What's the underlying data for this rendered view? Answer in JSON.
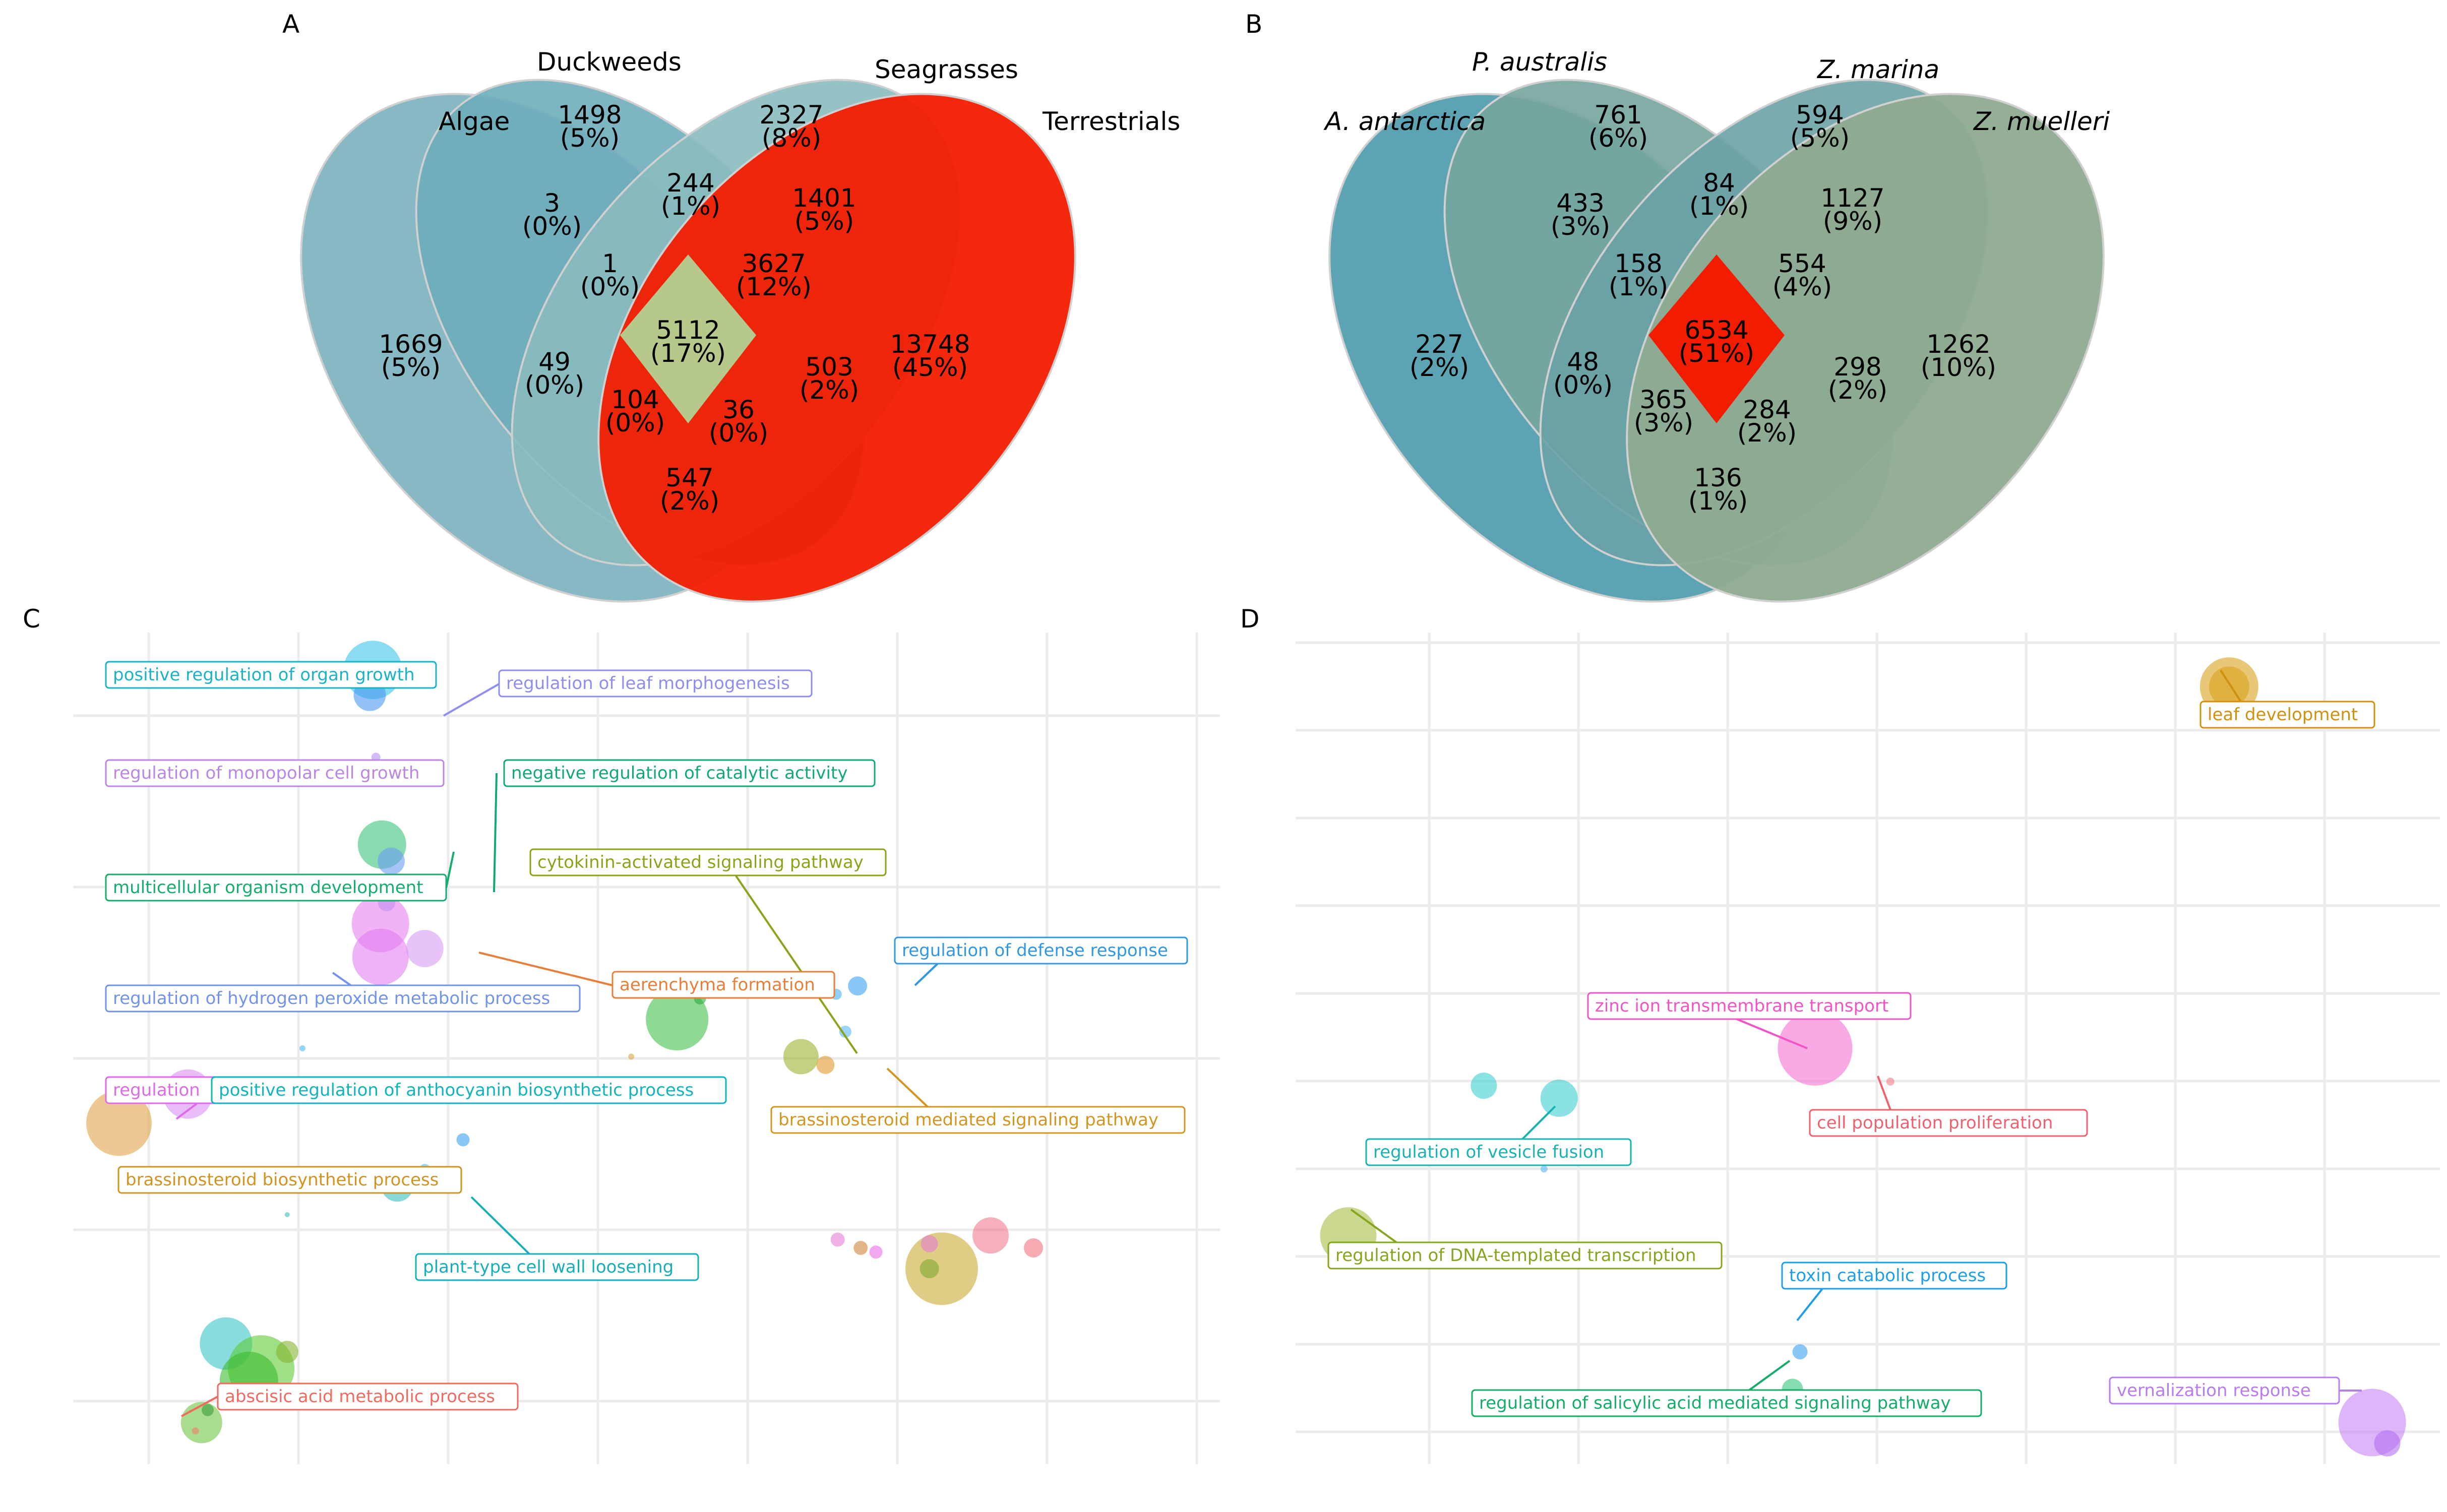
{
  "panels": {
    "a": "A",
    "b": "B",
    "c": "C",
    "d": "D"
  },
  "venn_a": {
    "sets": [
      {
        "label": "Algae",
        "italic": false,
        "color": "#79b1bd"
      },
      {
        "label": "Duckweeds",
        "italic": false,
        "color": "#6fadbb"
      },
      {
        "label": "Seagrasses",
        "italic": false,
        "color": "#8abbbe"
      },
      {
        "label": "Terrestrials",
        "italic": false,
        "color": "#f21c00"
      }
    ],
    "regions": [
      {
        "id": "a_only",
        "count": "1669",
        "pct": "(5%)",
        "color": "#79b1bd"
      },
      {
        "id": "d_only",
        "count": "1498",
        "pct": "(5%)",
        "color": "#6fadbb"
      },
      {
        "id": "s_only",
        "count": "2327",
        "pct": "(8%)",
        "color": "#8abbbe"
      },
      {
        "id": "t_only",
        "count": "13748",
        "pct": "(45%)",
        "color": "#f21c00"
      },
      {
        "id": "ad",
        "count": "3",
        "pct": "(0%)",
        "color": "#4a9cb0"
      },
      {
        "id": "ds",
        "count": "244",
        "pct": "(1%)",
        "color": "#4a9cb0"
      },
      {
        "id": "st",
        "count": "1401",
        "pct": "(5%)",
        "color": "#6aaebb"
      },
      {
        "id": "ads",
        "count": "1",
        "pct": "(0%)",
        "color": "#3f97ad"
      },
      {
        "id": "dst",
        "count": "3627",
        "pct": "(12%)",
        "color": "#9fc3a2"
      },
      {
        "id": "adst",
        "count": "5112",
        "pct": "(17%)",
        "color": "#b6c98b"
      },
      {
        "id": "as",
        "count": "49",
        "pct": "(0%)",
        "color": "#3f97ad"
      },
      {
        "id": "dt",
        "count": "503",
        "pct": "(2%)",
        "color": "#4e9fb2"
      },
      {
        "id": "ast",
        "count": "104",
        "pct": "(0%)",
        "color": "#3f97ad"
      },
      {
        "id": "adt",
        "count": "36",
        "pct": "(0%)",
        "color": "#3f97ad"
      },
      {
        "id": "at",
        "count": "547",
        "pct": "(2%)",
        "color": "#4fa3b8"
      }
    ]
  },
  "venn_b": {
    "sets": [
      {
        "label": "A. antarctica",
        "italic": true,
        "color": "#4a9aab"
      },
      {
        "label": "P. australis",
        "italic": true,
        "color": "#75a59e"
      },
      {
        "label": "Z. marina",
        "italic": true,
        "color": "#6aa2a6"
      },
      {
        "label": "Z. muelleri",
        "italic": true,
        "color": "#8fab90"
      }
    ],
    "regions": [
      {
        "id": "a_only",
        "count": "227",
        "pct": "(2%)",
        "color": "#4a9aab"
      },
      {
        "id": "p_only",
        "count": "761",
        "pct": "(6%)",
        "color": "#75a59e"
      },
      {
        "id": "m_only",
        "count": "594",
        "pct": "(5%)",
        "color": "#6aa2a6"
      },
      {
        "id": "u_only",
        "count": "1262",
        "pct": "(10%)",
        "color": "#8fab90"
      },
      {
        "id": "ap",
        "count": "433",
        "pct": "(3%)",
        "color": "#5b9ea6"
      },
      {
        "id": "pm",
        "count": "84",
        "pct": "(1%)",
        "color": "#3a96ad"
      },
      {
        "id": "mu",
        "count": "1127",
        "pct": "(9%)",
        "color": "#86ac94"
      },
      {
        "id": "apm",
        "count": "158",
        "pct": "(1%)",
        "color": "#3a94aa"
      },
      {
        "id": "pmu",
        "count": "554",
        "pct": "(4%)",
        "color": "#5e9fa4"
      },
      {
        "id": "all",
        "count": "6534",
        "pct": "(51%)",
        "color": "#f21c00"
      },
      {
        "id": "am",
        "count": "48",
        "pct": "(0%)",
        "color": "#3a94aa"
      },
      {
        "id": "pu",
        "count": "298",
        "pct": "(2%)",
        "color": "#4c9aa8"
      },
      {
        "id": "amu",
        "count": "365",
        "pct": "(3%)",
        "color": "#3a94aa"
      },
      {
        "id": "apu",
        "count": "284",
        "pct": "(2%)",
        "color": "#3a94aa"
      },
      {
        "id": "au",
        "count": "136",
        "pct": "(1%)",
        "color": "#3a97b0"
      }
    ]
  },
  "chart_data": [
    {
      "type": "scatter",
      "panel": "C",
      "xlim": [
        0,
        75
      ],
      "ylim": [
        0,
        100
      ],
      "grid": true,
      "points": [
        {
          "x": 19.6,
          "y": 95.5,
          "r": 58,
          "color": "#3ec3ea"
        },
        {
          "x": 19.4,
          "y": 92.5,
          "r": 32,
          "color": "#4a98f0"
        },
        {
          "x": 19.8,
          "y": 85.0,
          "r": 9,
          "color": "#b78cf2"
        },
        {
          "x": 20.2,
          "y": 74.5,
          "r": 48,
          "color": "#3ac47a"
        },
        {
          "x": 20.8,
          "y": 72.5,
          "r": 27,
          "color": "#6a9cf2"
        },
        {
          "x": 22.4,
          "y": 69.0,
          "r": 20,
          "color": "#2fb57d"
        },
        {
          "x": 20.5,
          "y": 67.5,
          "r": 17,
          "color": "#8aa7ee"
        },
        {
          "x": 20.1,
          "y": 65.0,
          "r": 57,
          "color": "#e77ef0"
        },
        {
          "x": 20.1,
          "y": 61.0,
          "r": 56,
          "color": "#e37ef2"
        },
        {
          "x": 23.0,
          "y": 62.0,
          "r": 37,
          "color": "#d69cf2"
        },
        {
          "x": 39.5,
          "y": 53.5,
          "r": 62,
          "color": "#45c24a"
        },
        {
          "x": 41.0,
          "y": 56.0,
          "r": 12,
          "color": "#2fae3e"
        },
        {
          "x": 47.6,
          "y": 49.0,
          "r": 35,
          "color": "#9ab22e"
        },
        {
          "x": 49.2,
          "y": 48.0,
          "r": 18,
          "color": "#e29a2e"
        },
        {
          "x": 51.3,
          "y": 57.5,
          "r": 19,
          "color": "#3aa1f0"
        },
        {
          "x": 50.5,
          "y": 52.0,
          "r": 12,
          "color": "#58b6f5"
        },
        {
          "x": 49.9,
          "y": 56.5,
          "r": 11,
          "color": "#45b2f5"
        },
        {
          "x": 3.0,
          "y": 41.0,
          "r": 65,
          "color": "#e2a34a"
        },
        {
          "x": 7.5,
          "y": 44.5,
          "r": 49,
          "color": "#d890f2"
        },
        {
          "x": 12.2,
          "y": 45.5,
          "r": 18,
          "color": "#c98ef2"
        },
        {
          "x": 25.5,
          "y": 39.0,
          "r": 13,
          "color": "#3aa1f0"
        },
        {
          "x": 21.2,
          "y": 33.5,
          "r": 32,
          "color": "#38c1bf"
        },
        {
          "x": 21.0,
          "y": 35.0,
          "r": 9,
          "color": "#4bbaf5"
        },
        {
          "x": 23.0,
          "y": 35.5,
          "r": 10,
          "color": "#4bbaf5"
        },
        {
          "x": 22.0,
          "y": 34.5,
          "r": 7,
          "color": "#4bbaf5"
        },
        {
          "x": 56.8,
          "y": 23.5,
          "r": 72,
          "color": "#c9ac34"
        },
        {
          "x": 56.0,
          "y": 23.5,
          "r": 19,
          "color": "#7ea82e"
        },
        {
          "x": 60.0,
          "y": 27.5,
          "r": 36,
          "color": "#f27a8e"
        },
        {
          "x": 62.8,
          "y": 26.0,
          "r": 19,
          "color": "#f2727f"
        },
        {
          "x": 50.0,
          "y": 27.0,
          "r": 14,
          "color": "#e57dd6"
        },
        {
          "x": 51.5,
          "y": 26.0,
          "r": 14,
          "color": "#d1863c"
        },
        {
          "x": 52.5,
          "y": 25.5,
          "r": 13,
          "color": "#e86ee6"
        },
        {
          "x": 56.0,
          "y": 26.5,
          "r": 17,
          "color": "#e57dd6"
        },
        {
          "x": 10.0,
          "y": 14.5,
          "r": 52,
          "color": "#38c5c5"
        },
        {
          "x": 12.3,
          "y": 11.5,
          "r": 66,
          "color": "#5ecb35"
        },
        {
          "x": 11.5,
          "y": 10.0,
          "r": 58,
          "color": "#3cbb2e"
        },
        {
          "x": 14.0,
          "y": 13.5,
          "r": 22,
          "color": "#86b631"
        },
        {
          "x": 8.4,
          "y": 5.0,
          "r": 41,
          "color": "#6fc443"
        },
        {
          "x": 8.8,
          "y": 6.5,
          "r": 12,
          "color": "#3a9e3a"
        },
        {
          "x": 8.0,
          "y": 4.0,
          "r": 7,
          "color": "#f27f6e"
        },
        {
          "x": 14.0,
          "y": 30.0,
          "r": 5,
          "color": "#38c1bf"
        },
        {
          "x": 36.5,
          "y": 49.0,
          "r": 6,
          "color": "#e2a34a"
        },
        {
          "x": 15.0,
          "y": 50.0,
          "r": 6,
          "color": "#4bbaf5"
        }
      ],
      "labels": [
        {
          "text": "positive regulation of organ growth",
          "color": "#19b3c5"
        },
        {
          "text": "regulation of leaf morphogenesis",
          "color": "#8d8ef0"
        },
        {
          "text": "regulation of monopolar cell growth",
          "color": "#b986e8"
        },
        {
          "text": "negative regulation of catalytic activity",
          "color": "#0fa974"
        },
        {
          "text": "multicellular organism development",
          "color": "#14ad6e"
        },
        {
          "text": "cytokinin-activated signaling pathway",
          "color": "#8aa318"
        },
        {
          "text": "regulation of defense response",
          "color": "#2f97e4"
        },
        {
          "text": "aerenchyma formation",
          "color": "#e77f3a"
        },
        {
          "text": "regulation of hydrogen peroxide metabolic process",
          "color": "#6f93ee"
        },
        {
          "text": "regulation",
          "color": "#dd6ae6"
        },
        {
          "text": "positive regulation of anthocyanin biosynthetic process",
          "color": "#12b3bd"
        },
        {
          "text": "brassinosteroid mediated signaling pathway",
          "color": "#d2961e"
        },
        {
          "text": "brassinosteroid biosynthetic process",
          "color": "#d4931c"
        },
        {
          "text": "plant-type cell wall loosening",
          "color": "#16aeb8"
        },
        {
          "text": "abscisic acid metabolic process",
          "color": "#ef6b60"
        }
      ]
    },
    {
      "type": "scatter",
      "panel": "D",
      "xlim": [
        0,
        76
      ],
      "ylim": [
        0,
        100
      ],
      "grid": true,
      "points": [
        {
          "x": 62.0,
          "y": 93.5,
          "r": 58,
          "color": "#d9a21c"
        },
        {
          "x": 62.0,
          "y": 93.5,
          "r": 40,
          "color": "#d9a21c"
        },
        {
          "x": 34.5,
          "y": 50.0,
          "r": 74,
          "color": "#f571d4"
        },
        {
          "x": 39.5,
          "y": 46.0,
          "r": 8,
          "color": "#f27f8a"
        },
        {
          "x": 12.5,
          "y": 45.5,
          "r": 26,
          "color": "#3ecfcf"
        },
        {
          "x": 17.5,
          "y": 44.0,
          "r": 37,
          "color": "#3ecfcf"
        },
        {
          "x": 16.5,
          "y": 35.5,
          "r": 7,
          "color": "#58b6f5"
        },
        {
          "x": 3.5,
          "y": 27.5,
          "r": 56,
          "color": "#a8c046"
        },
        {
          "x": 33.5,
          "y": 13.5,
          "r": 15,
          "color": "#3aa1f0"
        },
        {
          "x": 33.0,
          "y": 9.0,
          "r": 21,
          "color": "#33c47a"
        },
        {
          "x": 71.5,
          "y": 5.0,
          "r": 67,
          "color": "#c685f5"
        },
        {
          "x": 72.5,
          "y": 2.5,
          "r": 26,
          "color": "#b26ef0"
        }
      ],
      "labels": [
        {
          "text": "leaf development",
          "color": "#d09010"
        },
        {
          "text": "zinc ion transmembrane transport",
          "color": "#f254c4"
        },
        {
          "text": "cell population proliferation",
          "color": "#f2606e"
        },
        {
          "text": "regulation of vesicle fusion",
          "color": "#17b3b3"
        },
        {
          "text": "regulation of DNA-templated transcription",
          "color": "#85a51f"
        },
        {
          "text": "toxin catabolic process",
          "color": "#1e9ee8"
        },
        {
          "text": "regulation of salicylic acid mediated signaling pathway",
          "color": "#15ac69"
        },
        {
          "text": "vernalization response",
          "color": "#b67cf0"
        }
      ]
    }
  ]
}
